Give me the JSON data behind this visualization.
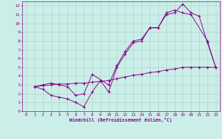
{
  "xlabel": "Windchill (Refroidissement éolien,°C)",
  "bg_color": "#cceee8",
  "line_color": "#880088",
  "grid_color": "#aad4cc",
  "xlim": [
    -0.5,
    23.5
  ],
  "ylim": [
    0,
    12.5
  ],
  "xticks": [
    0,
    1,
    2,
    3,
    4,
    5,
    6,
    7,
    8,
    9,
    10,
    11,
    12,
    13,
    14,
    15,
    16,
    17,
    18,
    19,
    20,
    21,
    22,
    23
  ],
  "yticks": [
    0,
    1,
    2,
    3,
    4,
    5,
    6,
    7,
    8,
    9,
    10,
    11,
    12
  ],
  "line1_x": [
    1,
    2,
    3,
    4,
    5,
    6,
    7,
    8,
    9,
    10,
    11,
    12,
    13,
    14,
    15,
    16,
    17,
    18,
    19,
    20,
    21,
    22,
    23
  ],
  "line1_y": [
    2.8,
    2.5,
    1.8,
    1.6,
    1.4,
    1.0,
    0.5,
    2.2,
    3.5,
    2.2,
    5.0,
    6.5,
    7.8,
    8.0,
    9.5,
    9.5,
    11.0,
    11.2,
    12.2,
    11.2,
    10.8,
    7.8,
    5.0
  ],
  "line2_x": [
    1,
    2,
    3,
    4,
    5,
    6,
    7,
    8,
    10,
    11,
    12,
    13,
    14,
    15,
    16,
    17,
    18,
    19,
    20,
    22,
    23
  ],
  "line2_y": [
    2.8,
    3.0,
    3.2,
    3.0,
    2.8,
    1.8,
    2.0,
    4.2,
    3.0,
    5.2,
    6.8,
    8.0,
    8.2,
    9.5,
    9.5,
    11.2,
    11.5,
    11.2,
    11.0,
    8.0,
    5.0
  ],
  "line3_x": [
    1,
    2,
    3,
    4,
    5,
    6,
    7,
    8,
    9,
    10,
    11,
    12,
    13,
    14,
    15,
    16,
    17,
    18,
    19,
    20,
    21,
    22,
    23
  ],
  "line3_y": [
    2.8,
    2.9,
    3.0,
    3.1,
    3.1,
    3.2,
    3.2,
    3.3,
    3.4,
    3.5,
    3.7,
    3.9,
    4.1,
    4.2,
    4.4,
    4.5,
    4.7,
    4.8,
    5.0,
    5.0,
    5.0,
    5.0,
    5.0
  ]
}
